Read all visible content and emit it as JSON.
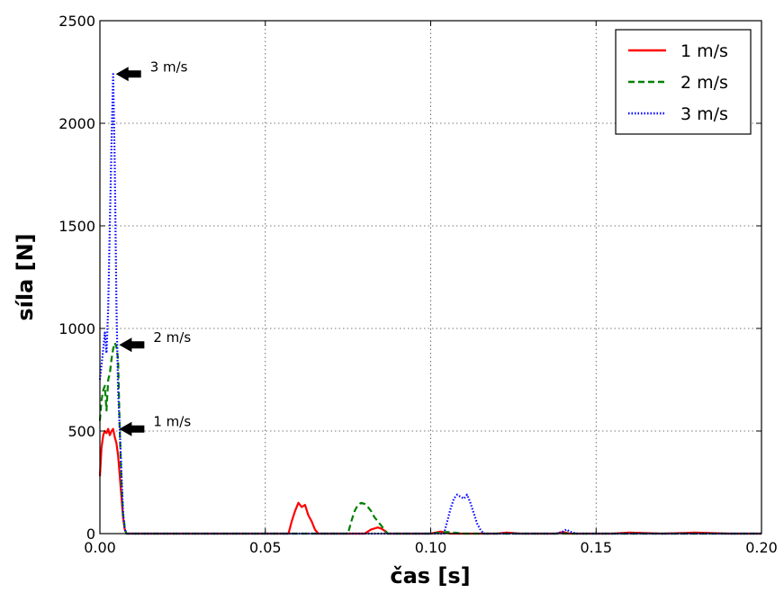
{
  "chart_data": {
    "type": "line",
    "xlabel": "čas [s]",
    "ylabel": "síla [N]",
    "xlim": [
      0.0,
      0.2
    ],
    "ylim": [
      0,
      2500
    ],
    "xticks": [
      "0.00",
      "0.05",
      "0.10",
      "0.15",
      "0.20"
    ],
    "xtick_values": [
      0.0,
      0.05,
      0.1,
      0.15,
      0.2
    ],
    "yticks": [
      "0",
      "500",
      "1000",
      "1500",
      "2000",
      "2500"
    ],
    "ytick_values": [
      0,
      500,
      1000,
      1500,
      2000,
      2500
    ],
    "grid": true,
    "legend_position": "top-right",
    "series": [
      {
        "name": "1 m/s",
        "color": "#ff0000",
        "style": "solid",
        "x": [
          0.0,
          0.0005,
          0.001,
          0.0015,
          0.002,
          0.0025,
          0.003,
          0.0035,
          0.004,
          0.0045,
          0.005,
          0.0055,
          0.006,
          0.0065,
          0.007,
          0.0075,
          0.008,
          0.0085,
          0.009,
          0.02,
          0.04,
          0.057,
          0.058,
          0.059,
          0.06,
          0.061,
          0.062,
          0.063,
          0.064,
          0.065,
          0.066,
          0.08,
          0.081,
          0.082,
          0.083,
          0.084,
          0.085,
          0.086,
          0.087,
          0.1,
          0.103,
          0.106,
          0.12,
          0.123,
          0.127,
          0.138,
          0.14,
          0.142,
          0.155,
          0.16,
          0.17,
          0.18,
          0.19,
          0.2
        ],
        "y": [
          280,
          420,
          480,
          500,
          490,
          510,
          480,
          500,
          510,
          470,
          440,
          380,
          280,
          180,
          80,
          20,
          0,
          0,
          0,
          0,
          0,
          0,
          60,
          110,
          150,
          130,
          140,
          90,
          60,
          20,
          0,
          0,
          10,
          20,
          25,
          30,
          25,
          15,
          0,
          0,
          10,
          0,
          0,
          5,
          0,
          0,
          8,
          0,
          0,
          5,
          0,
          5,
          0,
          0
        ]
      },
      {
        "name": "2 m/s",
        "color": "#008000",
        "style": "dashed",
        "x": [
          0.0,
          0.0005,
          0.001,
          0.0015,
          0.002,
          0.0025,
          0.003,
          0.0035,
          0.004,
          0.0045,
          0.005,
          0.0055,
          0.006,
          0.0065,
          0.007,
          0.0075,
          0.008,
          0.0085,
          0.009,
          0.04,
          0.06,
          0.075,
          0.076,
          0.077,
          0.078,
          0.079,
          0.08,
          0.081,
          0.082,
          0.083,
          0.084,
          0.085,
          0.086,
          0.087,
          0.1,
          0.105,
          0.11,
          0.12,
          0.14,
          0.16,
          0.2
        ],
        "y": [
          550,
          650,
          700,
          720,
          600,
          750,
          780,
          850,
          900,
          930,
          910,
          850,
          500,
          250,
          100,
          30,
          0,
          0,
          0,
          0,
          0,
          0,
          60,
          110,
          140,
          150,
          145,
          130,
          110,
          80,
          60,
          40,
          20,
          0,
          0,
          8,
          0,
          0,
          0,
          0,
          0
        ]
      },
      {
        "name": "3 m/s",
        "color": "#0000ff",
        "style": "dotted",
        "x": [
          0.0,
          0.0005,
          0.001,
          0.0015,
          0.002,
          0.0025,
          0.003,
          0.0035,
          0.004,
          0.0045,
          0.005,
          0.0055,
          0.006,
          0.0065,
          0.007,
          0.0075,
          0.008,
          0.0085,
          0.04,
          0.08,
          0.1,
          0.104,
          0.105,
          0.106,
          0.107,
          0.108,
          0.109,
          0.11,
          0.111,
          0.112,
          0.113,
          0.114,
          0.115,
          0.116,
          0.12,
          0.138,
          0.14,
          0.141,
          0.142,
          0.144,
          0.16,
          0.2
        ],
        "y": [
          750,
          820,
          900,
          980,
          880,
          1100,
          1500,
          1900,
          2240,
          1800,
          1100,
          700,
          500,
          300,
          100,
          20,
          0,
          0,
          0,
          0,
          0,
          0,
          60,
          120,
          170,
          190,
          180,
          170,
          190,
          150,
          100,
          50,
          20,
          0,
          0,
          0,
          10,
          20,
          10,
          0,
          0,
          0
        ]
      }
    ],
    "annotations": [
      {
        "text": "3 m/s",
        "x": 0.004,
        "y": 2240
      },
      {
        "text": "2 m/s",
        "x": 0.005,
        "y": 920
      },
      {
        "text": "1 m/s",
        "x": 0.005,
        "y": 510
      }
    ]
  }
}
